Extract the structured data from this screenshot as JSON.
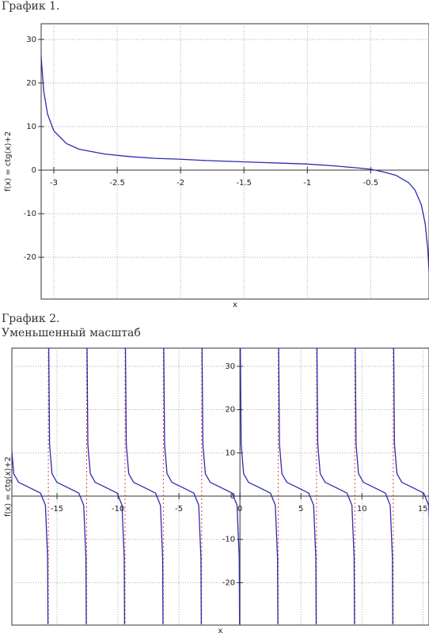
{
  "chart_data": [
    {
      "type": "line",
      "title": "График 1.",
      "xlabel": "x",
      "ylabel": "f(x) = ctg(x)+2",
      "x": [
        -3.11,
        -3.1,
        -3.08,
        -3.05,
        -3.0,
        -2.9,
        -2.8,
        -2.6,
        -2.4,
        -2.2,
        -2.0,
        -1.8,
        -1.6,
        -1.4,
        -1.2,
        -1.0,
        -0.8,
        -0.6,
        -0.5,
        -0.4,
        -0.3,
        -0.2,
        -0.15,
        -0.1,
        -0.07,
        -0.05,
        -0.04,
        -0.035
      ],
      "series": [
        {
          "name": "f(x) = ctg(x)+2",
          "color": "#2b2bb0",
          "values": [
            33.6,
            26.0,
            18.2,
            12.9,
            9.0,
            6.1,
            4.8,
            3.7,
            3.1,
            2.7,
            2.5,
            2.2,
            2.0,
            1.8,
            1.6,
            1.4,
            1.0,
            0.5,
            0.2,
            -0.4,
            -1.2,
            -2.9,
            -4.6,
            -8.0,
            -12.3,
            -18.0,
            -23.0,
            -26.6
          ]
        }
      ],
      "xlim": [
        -3.1,
        -0.04
      ],
      "ylim": [
        -29.6,
        33.6
      ],
      "xticks": [
        -3,
        -2.5,
        -2,
        -1.5,
        -1,
        -0.5
      ],
      "yticks": [
        -20,
        -10,
        0,
        10,
        20,
        30
      ],
      "grid": true
    },
    {
      "type": "line",
      "title": "График 2.",
      "subtitle": "Уменьшенный масштаб",
      "xlabel": "x",
      "ylabel": "f(x) = ctg(x)+2",
      "x": [
        -18.82,
        -18.75,
        -18.55,
        -18.15,
        -17.28,
        -16.35,
        -15.95,
        -15.77,
        -15.74,
        -15.71,
        -15.68,
        -15.61,
        -15.41,
        -15.01,
        -14.14,
        -13.21,
        -12.81,
        -12.63,
        -12.6,
        -12.57,
        -12.54,
        -12.47,
        -12.27,
        -11.87,
        -11.0,
        -10.07,
        -9.67,
        -9.49,
        -9.46,
        -9.42,
        -9.39,
        -9.32,
        -9.12,
        -8.72,
        -7.85,
        -6.92,
        -6.52,
        -6.34,
        -6.31,
        -6.28,
        -6.25,
        -6.18,
        -5.98,
        -5.58,
        -4.71,
        -3.78,
        -3.38,
        -3.2,
        -3.17,
        -3.14,
        -3.11,
        -3.04,
        -2.84,
        -2.44,
        -1.57,
        -0.64,
        -0.24,
        -0.06,
        -0.03,
        0,
        0.03,
        0.1,
        0.3,
        0.7,
        1.57,
        2.5,
        2.9,
        3.08,
        3.11,
        3.14,
        3.17,
        3.24,
        3.44,
        3.84,
        4.71,
        5.64,
        6.04,
        6.22,
        6.25,
        6.28,
        6.31,
        6.38,
        6.58,
        6.98,
        7.85,
        8.78,
        9.18,
        9.36,
        9.39,
        9.42,
        9.45,
        9.52,
        9.72,
        10.12,
        10.99,
        11.92,
        12.32,
        12.5,
        12.53,
        12.57,
        12.6,
        12.67,
        12.87,
        13.27,
        14.14,
        15.07,
        15.47,
        15.65,
        15.68
      ],
      "series": [
        {
          "name": "f(x) = ctg(x)+2",
          "color": "#2b2bb0",
          "values": [
            35.3,
            12.0,
            5.2,
            3.2,
            2.0,
            0.7,
            -2.1,
            -14.2,
            -29.6,
            null,
            35.3,
            12.0,
            5.2,
            3.2,
            2.0,
            0.7,
            -2.1,
            -14.2,
            -29.6,
            null,
            35.3,
            12.0,
            5.2,
            3.2,
            2.0,
            0.7,
            -2.1,
            -14.2,
            -29.6,
            null,
            35.3,
            12.0,
            5.2,
            3.2,
            2.0,
            0.7,
            -2.1,
            -14.2,
            -29.6,
            null,
            35.3,
            12.0,
            5.2,
            3.2,
            2.0,
            0.7,
            -2.1,
            -14.2,
            -29.6,
            null,
            35.3,
            12.0,
            5.2,
            3.2,
            2.0,
            0.7,
            -2.1,
            -14.2,
            -29.6,
            null,
            35.3,
            12.0,
            5.2,
            3.2,
            2.0,
            0.7,
            -2.1,
            -14.2,
            -29.6,
            null,
            35.3,
            12.0,
            5.2,
            3.2,
            2.0,
            0.7,
            -2.1,
            -14.2,
            -29.6,
            null,
            35.3,
            12.0,
            5.2,
            3.2,
            2.0,
            0.7,
            -2.1,
            -14.2,
            -29.6,
            null,
            35.3,
            12.0,
            5.2,
            3.2,
            2.0,
            0.7,
            -2.1,
            -14.2,
            -29.6,
            null,
            35.3,
            12.0,
            5.2,
            3.2,
            2.0,
            0.7,
            -2.1,
            -14.2,
            -29.6
          ]
        }
      ],
      "asymptotes": [
        -15.71,
        -12.57,
        -9.42,
        -6.28,
        -3.14,
        3.14,
        6.28,
        9.42,
        12.57,
        15.71
      ],
      "asymptote_color": "#e04040",
      "xlim": [
        -18.7,
        15.5
      ],
      "ylim": [
        -29.8,
        34.2
      ],
      "xticks": [
        -15,
        -10,
        -5,
        0,
        5,
        10,
        15
      ],
      "yticks": [
        -20,
        -10,
        0,
        10,
        20,
        30
      ],
      "grid": true
    }
  ]
}
